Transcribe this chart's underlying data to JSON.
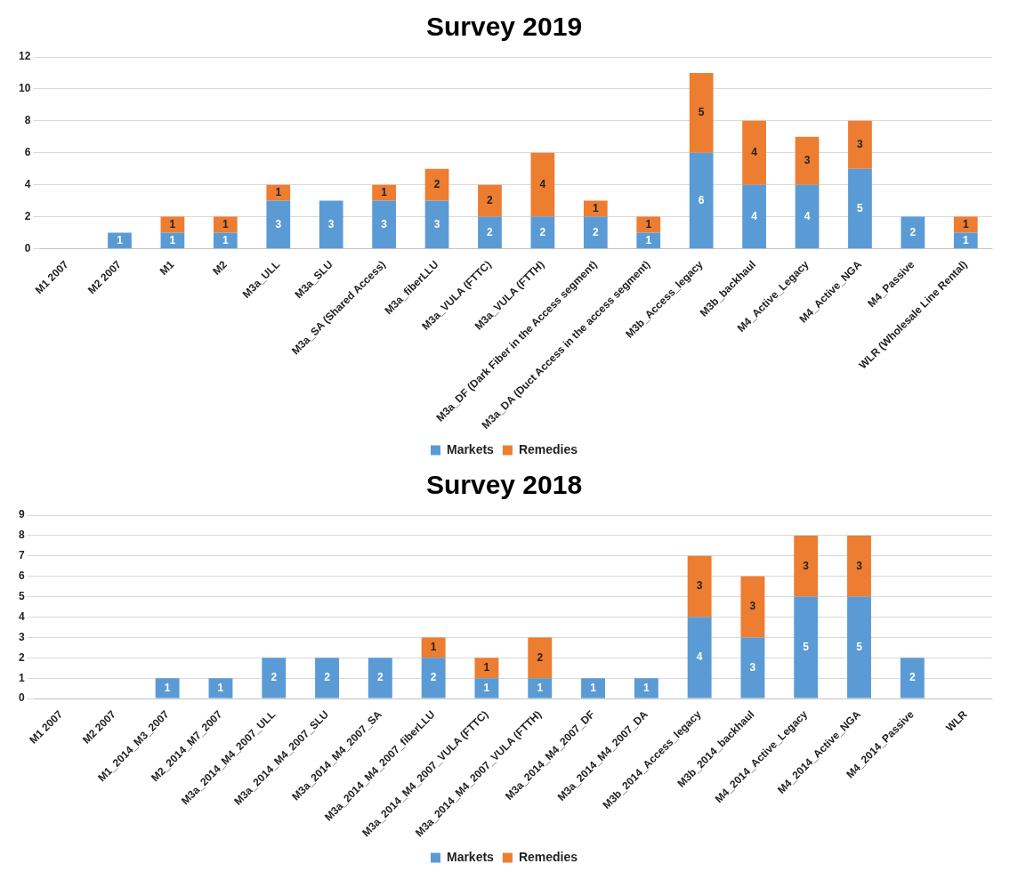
{
  "chart_data": [
    {
      "type": "bar",
      "title": "Survey 2019",
      "stacked": true,
      "data_labels": true,
      "grid": "y",
      "legend": "bottom",
      "categories": [
        "M1 2007",
        "M2 2007",
        "M1",
        "M2",
        "M3a_ULL",
        "M3a_SLU",
        "M3a_SA (Shared Access)",
        "M3a_fiberLLU",
        "M3a_VULA (FTTC)",
        "M3a_VULA (FTTH)",
        "M3a_DF (Dark Fiber in the Access segment)",
        "M3a_DA (Duct Access in the access segment)",
        "M3b_Access_legacy",
        "M3b_backhaul",
        "M4_Active_Legacy",
        "M4_Active_NGA",
        "M4_Passive",
        "WLR (Wholesale Line Rental)"
      ],
      "series": [
        {
          "name": "Markets",
          "color": "#5b9bd5",
          "values": [
            null,
            1,
            1,
            1,
            3,
            3,
            3,
            3,
            2,
            2,
            2,
            1,
            6,
            4,
            4,
            5,
            2,
            1
          ]
        },
        {
          "name": "Remedies",
          "color": "#ed7d31",
          "values": [
            null,
            null,
            1,
            1,
            1,
            null,
            1,
            2,
            2,
            4,
            1,
            1,
            5,
            4,
            3,
            3,
            null,
            1
          ]
        }
      ],
      "ylim": [
        0,
        12
      ],
      "yticks": [
        0,
        2,
        4,
        6,
        8,
        10,
        12
      ]
    },
    {
      "type": "bar",
      "title": "Survey 2018",
      "stacked": true,
      "data_labels": true,
      "grid": "y",
      "legend": "bottom",
      "categories": [
        "M1 2007",
        "M2 2007",
        "M1_2014_M3_2007",
        "M2_2014_M7_2007",
        "M3a_2014_M4_2007_ULL",
        "M3a_2014_M4_2007_SLU",
        "M3a_2014_M4_2007_SA",
        "M3a_2014_M4_2007_fiberLLU",
        "M3a_2014_M4_2007_VULA (FTTC)",
        "M3a_2014_M4_2007_VULA (FTTH)",
        "M3a_2014_M4_2007_DF",
        "M3a_2014_M4_2007_DA",
        "M3b_2014_Access_legacy",
        "M3b_2014_backhaul",
        "M4_2014_Active_Legacy",
        "M4_2014_Active_NGA",
        "M4_2014_Passive",
        "WLR"
      ],
      "series": [
        {
          "name": "Markets",
          "color": "#5b9bd5",
          "values": [
            null,
            null,
            1,
            1,
            2,
            2,
            2,
            2,
            1,
            1,
            1,
            1,
            4,
            3,
            5,
            5,
            2,
            null
          ]
        },
        {
          "name": "Remedies",
          "color": "#ed7d31",
          "values": [
            null,
            null,
            null,
            null,
            null,
            null,
            null,
            1,
            1,
            2,
            null,
            null,
            3,
            3,
            3,
            3,
            null,
            null
          ]
        }
      ],
      "ylim": [
        0,
        9
      ],
      "yticks": [
        0,
        1,
        2,
        3,
        4,
        5,
        6,
        7,
        8,
        9
      ]
    }
  ]
}
